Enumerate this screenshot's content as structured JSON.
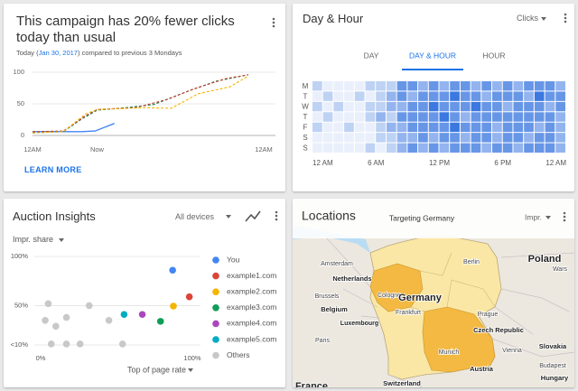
{
  "campaign_card": {
    "title": "This campaign has 20% fewer clicks today than usual",
    "subtitle_start": "Today (",
    "date": "Jan 30, 2017",
    "subtitle_end": ") compared to previous 3 Mondays",
    "link": "LEARN MORE"
  },
  "day_hour_card": {
    "title": "Day & Hour",
    "metric": "Clicks",
    "tabs": [
      "DAY",
      "DAY & HOUR",
      "HOUR"
    ],
    "selected_tab": 1
  },
  "auction_card": {
    "title": "Auction Insights",
    "devices": "All devices",
    "metric": "Impr. share"
  },
  "locations_card": {
    "title": "Locations",
    "subtitle": "Targeting Germany",
    "metric": "Impr.",
    "labels": [
      "Amsterdam",
      "Netherlands",
      "Brussels",
      "Belgium",
      "Luxembourg",
      "Paris",
      "France",
      "Cologne",
      "Germany",
      "Frankfurt",
      "Berlin",
      "Poland",
      "Wars",
      "Prague",
      "Czech Republic",
      "Vienna",
      "Munich",
      "Austria",
      "Slovakia",
      "Budapest",
      "Hungary",
      "Switzerland"
    ]
  },
  "chart_data": [
    {
      "type": "line",
      "xlim": [
        0,
        24
      ],
      "xticks": [
        {
          "value": 0,
          "label": "12AM"
        },
        {
          "value": 6.7,
          "label": "Now"
        },
        {
          "value": 24,
          "label": "12AM"
        }
      ],
      "ylim": [
        0,
        100
      ],
      "yticks": [
        0,
        50,
        100
      ],
      "grid": true,
      "series": [
        {
          "color": "#4285f4",
          "dashed": false,
          "x": [
            0,
            2.25,
            5.06,
            6.5,
            7.5,
            8.5
          ],
          "values": [
            6,
            6,
            6,
            7,
            13,
            19
          ]
        },
        {
          "color": "#0b8043",
          "dashed": true,
          "x": [
            0,
            3.2,
            5.1,
            6.7,
            9.75,
            12.6,
            16.3,
            19.1,
            22.4
          ],
          "values": [
            4,
            6,
            26,
            40,
            44,
            49,
            71,
            86,
            96
          ]
        },
        {
          "color": "#c53929",
          "dashed": true,
          "x": [
            0,
            3.2,
            5.5,
            6.7,
            10.7,
            14,
            16.8,
            20.1,
            22.4
          ],
          "values": [
            6,
            7,
            31,
            41,
            44,
            57,
            74,
            90,
            96
          ]
        },
        {
          "color": "#f4b400",
          "dashed": true,
          "x": [
            0,
            3.2,
            5.5,
            6.7,
            11.6,
            14.4,
            17.2,
            20.5,
            22.4
          ],
          "values": [
            4,
            6,
            34,
            41,
            44,
            43,
            66,
            77,
            94
          ]
        }
      ]
    },
    {
      "type": "heatmap",
      "color": "#3b78e0",
      "rows": [
        "M",
        "T",
        "W",
        "T",
        "F",
        "S",
        "S"
      ],
      "xlim": [
        0,
        24
      ],
      "xticks": [
        {
          "value": 0,
          "label": "12 AM"
        },
        {
          "value": 6,
          "label": "6 AM"
        },
        {
          "value": 12,
          "label": "12 PM"
        },
        {
          "value": 18,
          "label": "6 PM"
        },
        {
          "value": 24,
          "label": "12 AM"
        }
      ],
      "values": [
        [
          1,
          0,
          0,
          0,
          0,
          1,
          1,
          1,
          3,
          3,
          2,
          3,
          2,
          3,
          3,
          2,
          3,
          2,
          3,
          2,
          3,
          3,
          3,
          2
        ],
        [
          0,
          1,
          0,
          0,
          1,
          0,
          1,
          2,
          3,
          2,
          3,
          3,
          3,
          4,
          3,
          3,
          2,
          3,
          3,
          3,
          2,
          4,
          3,
          3
        ],
        [
          1,
          0,
          1,
          0,
          0,
          1,
          1,
          2,
          2,
          3,
          3,
          4,
          3,
          3,
          3,
          4,
          3,
          3,
          2,
          3,
          3,
          3,
          2,
          3
        ],
        [
          0,
          1,
          0,
          0,
          0,
          1,
          2,
          1,
          3,
          3,
          3,
          3,
          4,
          3,
          2,
          3,
          3,
          3,
          3,
          3,
          3,
          3,
          3,
          2
        ],
        [
          1,
          0,
          0,
          1,
          0,
          0,
          1,
          2,
          2,
          3,
          3,
          3,
          3,
          4,
          3,
          3,
          3,
          2,
          3,
          3,
          3,
          2,
          3,
          2
        ],
        [
          0,
          0,
          0,
          0,
          0,
          0,
          1,
          1,
          2,
          2,
          3,
          2,
          3,
          3,
          2,
          3,
          3,
          2,
          3,
          3,
          2,
          3,
          3,
          2
        ],
        [
          0,
          0,
          0,
          0,
          0,
          1,
          0,
          1,
          2,
          3,
          2,
          3,
          2,
          3,
          3,
          3,
          2,
          3,
          3,
          2,
          3,
          3,
          3,
          2
        ]
      ]
    },
    {
      "type": "scatter",
      "x_label": "Top of page rate",
      "xlim": [
        0,
        100
      ],
      "ylim": [
        10,
        100
      ],
      "xticks": [
        {
          "value": 0,
          "label": "0%"
        },
        {
          "value": 100,
          "label": "100%"
        }
      ],
      "yticks": [
        {
          "value": 100,
          "label": "100%"
        },
        {
          "value": 50,
          "label": "50%"
        },
        {
          "value": 10,
          "label": "<10%"
        }
      ],
      "grid": true,
      "series": [
        {
          "name": "You",
          "color": "#4285f4",
          "x": [
            87
          ],
          "values": [
            86
          ]
        },
        {
          "name": "example1.com",
          "color": "#db4437",
          "x": [
            98
          ],
          "values": [
            59
          ]
        },
        {
          "name": "example2.com",
          "color": "#f4b400",
          "x": [
            87.5
          ],
          "values": [
            49.5
          ]
        },
        {
          "name": "example3.com",
          "color": "#0f9d58",
          "x": [
            79
          ],
          "values": [
            34
          ]
        },
        {
          "name": "example4.com",
          "color": "#ab47bc",
          "x": [
            67
          ],
          "values": [
            41
          ]
        },
        {
          "name": "example5.com",
          "color": "#00acc1",
          "x": [
            55
          ],
          "values": [
            41
          ]
        },
        {
          "name": "Others",
          "color": "#c8c8c8",
          "x": [
            5,
            32,
            17,
            3,
            10,
            45,
            7,
            17,
            26,
            54
          ],
          "values": [
            52,
            50,
            38,
            35,
            29,
            35,
            11,
            11,
            11,
            11
          ]
        }
      ]
    }
  ]
}
